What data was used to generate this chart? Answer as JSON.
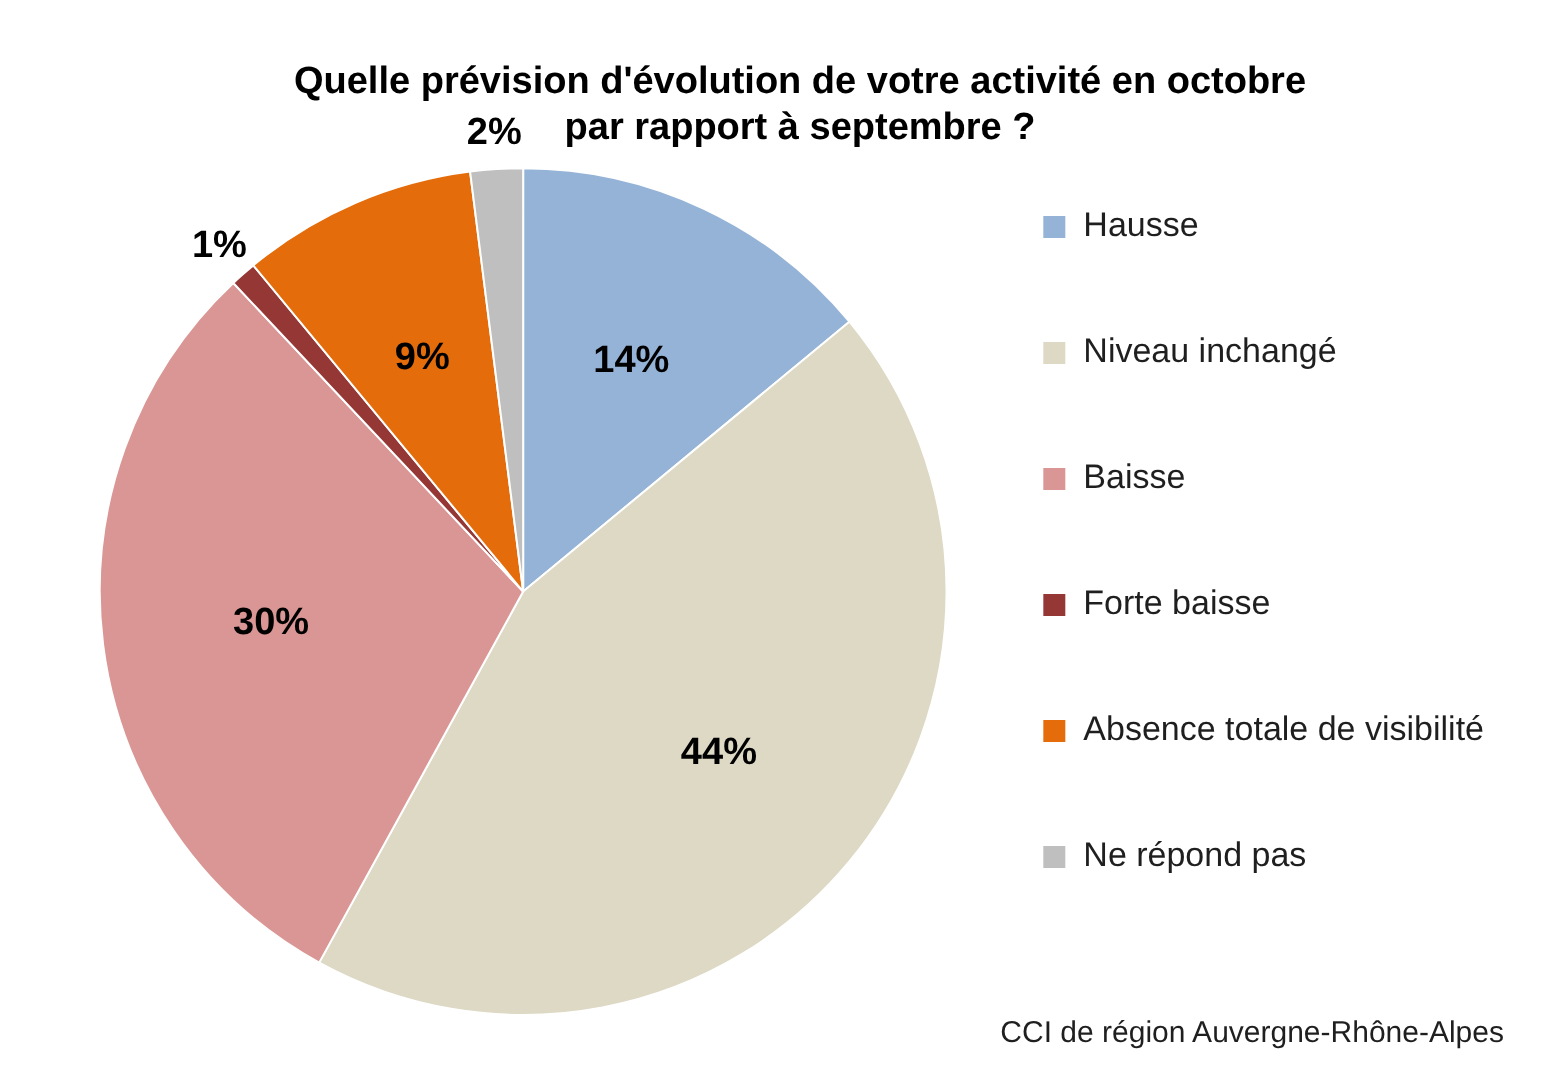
{
  "chart_data": {
    "type": "pie",
    "title": "Quelle prévision d'évolution de votre activité en octobre\npar rapport à septembre ?",
    "categories": [
      "Hausse",
      "Niveau inchangé",
      "Baisse",
      "Forte baisse",
      "Absence totale de visibilité",
      "Ne répond pas"
    ],
    "values": [
      14,
      44,
      30,
      1,
      9,
      2
    ],
    "value_labels": [
      "14%",
      "44%",
      "30%",
      "1%",
      "9%",
      "2%"
    ],
    "colors": [
      "#95b3d7",
      "#ddd9c4",
      "#d99694",
      "#953735",
      "#e46c0a",
      "#bfbfbf"
    ],
    "legend": "right",
    "annotations": [
      "CCI de région Auvergne-Rhône-Alpes"
    ]
  }
}
